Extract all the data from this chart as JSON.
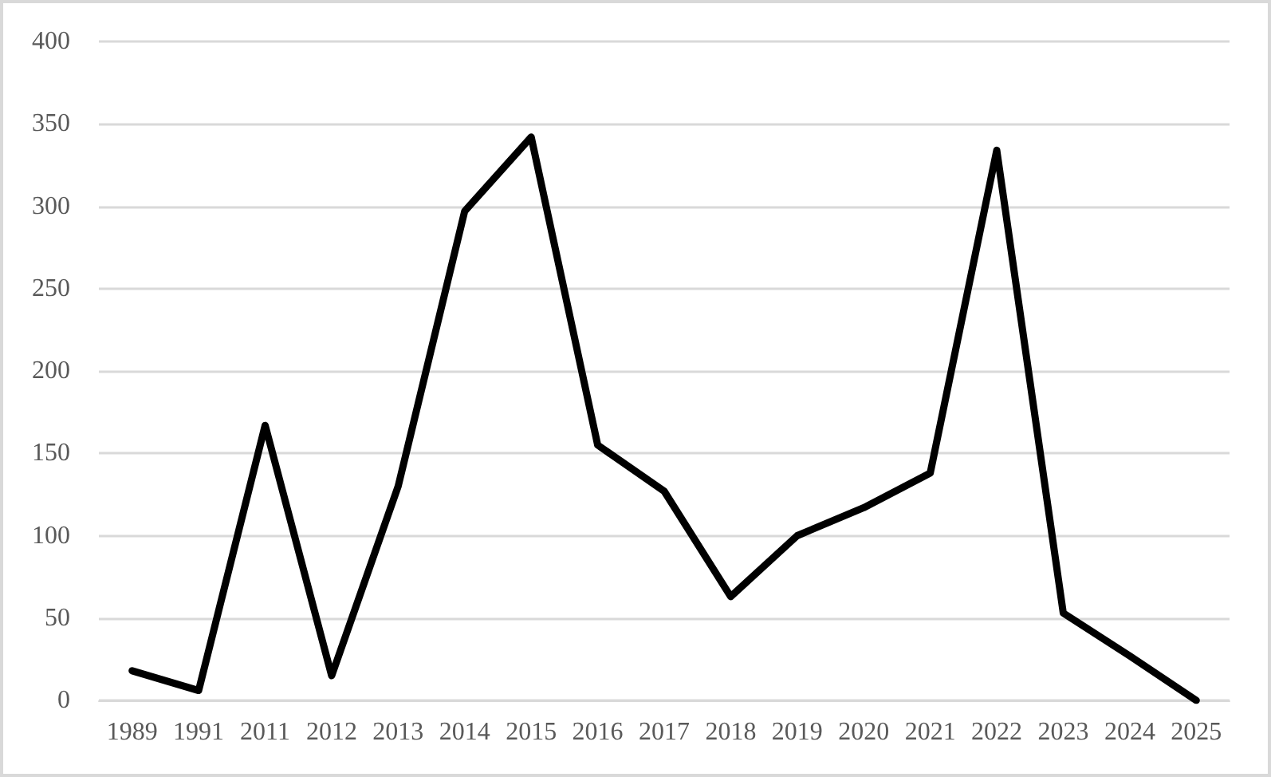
{
  "chart_data": {
    "type": "line",
    "categories": [
      "1989",
      "1991",
      "2011",
      "2012",
      "2013",
      "2014",
      "2015",
      "2016",
      "2017",
      "2018",
      "2019",
      "2020",
      "2021",
      "2022",
      "2023",
      "2024",
      "2025"
    ],
    "values": [
      18,
      6,
      167,
      15,
      130,
      297,
      342,
      155,
      127,
      63,
      100,
      117,
      138,
      334,
      53,
      27,
      0
    ],
    "color": "#000000",
    "ylim": [
      0,
      400
    ],
    "yticks": [
      0,
      50,
      100,
      150,
      200,
      250,
      300,
      350,
      400
    ],
    "grid": "y",
    "marker": "none",
    "line_style": "solid"
  }
}
